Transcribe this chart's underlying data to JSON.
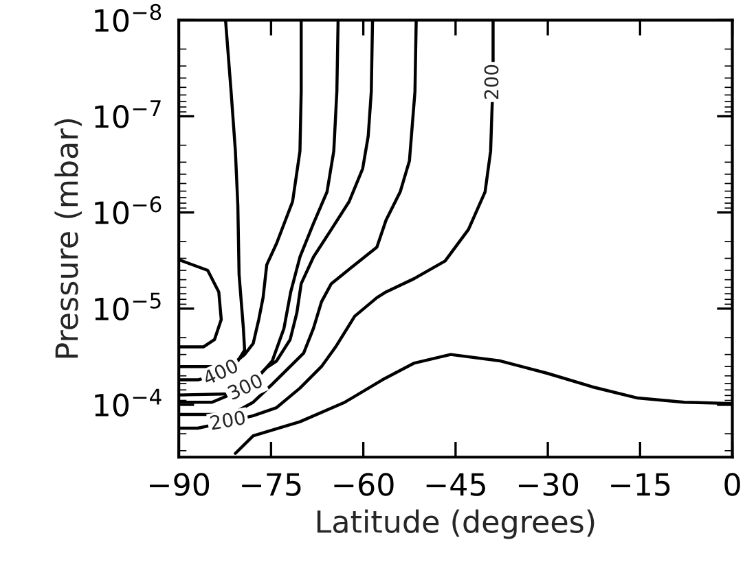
{
  "chart_data": {
    "type": "line",
    "xlabel": "Latitude (degrees)",
    "ylabel": "Pressure (mbar)",
    "log": "y",
    "grid": false,
    "marker": "none",
    "line_style": "solid",
    "xlim": [
      -90,
      0
    ],
    "xticks": [
      {
        "value": -90,
        "label": "−90"
      },
      {
        "value": -75,
        "label": "−75"
      },
      {
        "value": -60,
        "label": "−60"
      },
      {
        "value": -45,
        "label": "−45"
      },
      {
        "value": -30,
        "label": "−30"
      },
      {
        "value": -15,
        "label": "−15"
      },
      0
    ],
    "ylim": [
      0.00035,
      1e-08
    ],
    "yticks": [
      {
        "value": 0.0001,
        "label": "10$^{−4}$"
      },
      {
        "value": 1e-05,
        "label": "10$^{−5}$"
      },
      {
        "value": 1e-06,
        "label": "10$^{−6}$"
      },
      {
        "value": 1e-07,
        "label": "10$^{−7}$"
      },
      {
        "value": 1e-08,
        "label": "10$^{−8}$"
      }
    ],
    "series": [
      {
        "color": "#000000",
        "x": [
          -82.4,
          -81.5,
          -80.8,
          -80.4,
          -80.2,
          -79.5,
          -79.3,
          -80.4,
          -83.7,
          -90
        ],
        "values": [
          1e-08,
          5.5e-08,
          2.3e-07,
          8.5e-07,
          4.4e-06,
          1.6e-05,
          2.7e-05,
          3.5e-05,
          4e-05,
          4e-05
        ]
      },
      {
        "color": "#000000",
        "x": [
          -70.1,
          -70.1,
          -70.3,
          -71.5,
          -74.1,
          -75.7,
          -76.3,
          -77.0,
          -77.9,
          -79.3,
          -83.1,
          -86.9,
          -90
        ],
        "values": [
          1e-08,
          5.5e-08,
          2.3e-07,
          7.7e-07,
          2.1e-06,
          3.5e-06,
          7.7e-06,
          1.3e-05,
          2.3e-05,
          3e-05,
          4.7e-05,
          5.5e-05,
          5.5e-05
        ]
      },
      {
        "color": "#000000",
        "x": [
          -64.1,
          -64.3,
          -64.8,
          -65.9,
          -68.1,
          -70.3,
          -71.8,
          -72.9,
          -74.8,
          -77.5,
          -81.5,
          -90
        ],
        "values": [
          1e-08,
          5.5e-08,
          2.3e-07,
          6.1e-07,
          1.3e-06,
          2.9e-06,
          6.7e-06,
          1.6e-05,
          3.5e-05,
          5.5e-05,
          7.7e-05,
          7.9e-05
        ]
      },
      {
        "color": "#000000",
        "x": [
          -58.5,
          -58.7,
          -59.2,
          -60.1,
          -62.3,
          -65.2,
          -68.1,
          -70.1,
          -70.8,
          -71.9,
          -74.1,
          -75.7,
          -79.1,
          -84.6,
          -90
        ],
        "values": [
          1e-08,
          5.5e-08,
          1.6e-07,
          3.5e-07,
          7.7e-07,
          1.5e-06,
          2.9e-06,
          5.5e-06,
          1.1e-05,
          2.1e-05,
          3.5e-05,
          4.1e-05,
          6.7e-05,
          9.4e-05,
          9.4e-05
        ]
      },
      {
        "color": "#000000",
        "x": [
          -51.4,
          -51.6,
          -52.5,
          -54.0,
          -56.3,
          -57.8,
          -61.4,
          -65.2,
          -66.8,
          -68.1,
          -69.7,
          -71.9,
          -74.8,
          -77.9,
          -81.5,
          -90
        ],
        "values": [
          1e-08,
          5.5e-08,
          2.9e-07,
          6.1e-07,
          1.2e-06,
          2.3e-06,
          3.5e-06,
          5.5e-06,
          8.5e-06,
          1.6e-05,
          2.9e-05,
          4e-05,
          6.1e-05,
          9.4e-05,
          0.000126,
          0.000126
        ]
      },
      {
        "color": "#000000",
        "x": [
          -38.9,
          -38.9,
          -38.9,
          -39.1,
          -39.3,
          -40.2,
          -42.9,
          -46.7,
          -51.8,
          -56.3,
          -57.8,
          -61.4,
          -64.5,
          -66.8,
          -70.3,
          -74.1,
          -77.9,
          -82.0,
          -86.9,
          -90
        ],
        "values": [
          1e-08,
          1.8e-08,
          4.4e-08,
          9.4e-08,
          2.3e-07,
          6.1e-07,
          1.5e-06,
          3.2e-06,
          4.9e-06,
          6.7e-06,
          7.7e-06,
          1.2e-05,
          2.5e-05,
          4e-05,
          6.7e-05,
          0.000107,
          0.00013,
          0.00015,
          0.000175,
          0.000175
        ]
      },
      {
        "color": "#000000",
        "x": [
          -80.8,
          -77.9,
          -70.3,
          -63.0,
          -56.9,
          -51.8,
          -45.8,
          -37.7,
          -30.1,
          -22.8,
          -15.4,
          -7.8,
          0
        ],
        "values": [
          0.00032,
          0.00021,
          0.00015,
          9.4e-05,
          5.5e-05,
          3.7e-05,
          3e-05,
          3.5e-05,
          4.7e-05,
          6.5e-05,
          8.5e-05,
          9.4e-05,
          9.7e-05
        ]
      },
      {
        "color": "#000000",
        "x": [
          -90,
          -85.3,
          -83.5,
          -83.1,
          -84.2,
          -86.0,
          -90
        ],
        "values": [
          3.1e-06,
          4e-06,
          6.7e-06,
          1.3e-05,
          2.1e-05,
          2.5e-05,
          2.5e-05
        ]
      }
    ],
    "annotations": [
      {
        "text": "400",
        "x": -83.1,
        "y": 4.7e-05
      },
      {
        "text": "300",
        "x": -79.1,
        "y": 6.7e-05
      },
      {
        "text": "200",
        "x": -82.0,
        "y": 0.00015
      },
      {
        "text": "200",
        "x": -38.9,
        "y": 4.4e-08
      }
    ]
  }
}
